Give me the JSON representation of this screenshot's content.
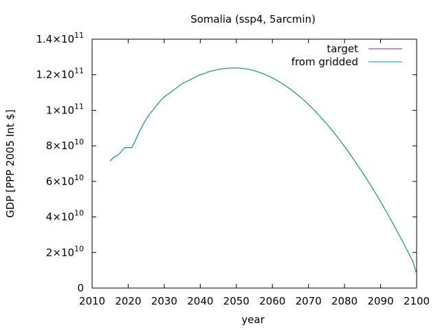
{
  "chart_data": {
    "type": "line",
    "title": "Somalia (ssp4, 5arcmin)",
    "xlabel": "year",
    "ylabel": "GDP [PPP 2005 Int $]",
    "xlim": [
      2010,
      2100
    ],
    "ylim": [
      0,
      140000000000
    ],
    "x_ticks": [
      "2010",
      "2020",
      "2030",
      "2040",
      "2050",
      "2060",
      "2070",
      "2080",
      "2090",
      "2100"
    ],
    "y_ticks": [
      {
        "value": 0,
        "mantissa": "0",
        "exponent": ""
      },
      {
        "value": 20000000000,
        "mantissa": "2×10",
        "exponent": "10"
      },
      {
        "value": 40000000000,
        "mantissa": "4×10",
        "exponent": "10"
      },
      {
        "value": 60000000000,
        "mantissa": "6×10",
        "exponent": "10"
      },
      {
        "value": 80000000000,
        "mantissa": "8×10",
        "exponent": "10"
      },
      {
        "value": 100000000000,
        "mantissa": "1×10",
        "exponent": "11"
      },
      {
        "value": 120000000000,
        "mantissa": "1.2×10",
        "exponent": "11"
      },
      {
        "value": 140000000000,
        "mantissa": "1.4×10",
        "exponent": "11"
      }
    ],
    "grid": false,
    "legend_position": "top-right",
    "series": [
      {
        "name": "target",
        "color": "#8b1a9e",
        "x": [
          2015,
          2016,
          2017,
          2018,
          2019,
          2020,
          2021,
          2022,
          2023,
          2024,
          2025,
          2026,
          2027,
          2028,
          2029,
          2030,
          2031,
          2032,
          2033,
          2034,
          2035,
          2036,
          2037,
          2038,
          2039,
          2040,
          2041,
          2042,
          2043,
          2044,
          2045,
          2046,
          2047,
          2048,
          2049,
          2050,
          2051,
          2052,
          2053,
          2054,
          2055,
          2056,
          2057,
          2058,
          2059,
          2060,
          2061,
          2062,
          2063,
          2064,
          2065,
          2066,
          2067,
          2068,
          2069,
          2070,
          2071,
          2072,
          2073,
          2074,
          2075,
          2076,
          2077,
          2078,
          2079,
          2080,
          2081,
          2082,
          2083,
          2084,
          2085,
          2086,
          2087,
          2088,
          2089,
          2090,
          2091,
          2092,
          2093,
          2094,
          2095,
          2096,
          2097,
          2098,
          2099,
          2100
        ],
        "y": [
          71500000000,
          73500000000,
          74500000000,
          76500000000,
          79000000000,
          79000000000,
          79000000000,
          83000000000,
          87500000000,
          91500000000,
          95000000000,
          98000000000,
          100500000000,
          103000000000,
          105500000000,
          107500000000,
          109000000000,
          110500000000,
          112000000000,
          113500000000,
          115000000000,
          116000000000,
          117000000000,
          118000000000,
          119000000000,
          120000000000,
          120500000000,
          121500000000,
          122000000000,
          122500000000,
          123000000000,
          123300000000,
          123500000000,
          123700000000,
          123800000000,
          123800000000,
          123700000000,
          123500000000,
          123200000000,
          122800000000,
          122300000000,
          121600000000,
          120900000000,
          120100000000,
          119200000000,
          118200000000,
          117100000000,
          115900000000,
          114700000000,
          113300000000,
          111900000000,
          110300000000,
          108700000000,
          107000000000,
          105200000000,
          103300000000,
          101300000000,
          99200000000,
          97000000000,
          94800000000,
          92500000000,
          90100000000,
          87600000000,
          85000000000,
          82400000000,
          79700000000,
          76900000000,
          74000000000,
          71000000000,
          68000000000,
          65000000000,
          61800000000,
          58600000000,
          55400000000,
          52000000000,
          48600000000,
          45100000000,
          41500000000,
          37900000000,
          34200000000,
          30400000000,
          26600000000,
          22700000000,
          18800000000,
          14800000000,
          8000000000
        ]
      },
      {
        "name": "from gridded",
        "color": "#009e73",
        "x": [
          2015,
          2016,
          2017,
          2018,
          2019,
          2020,
          2021,
          2022,
          2023,
          2024,
          2025,
          2026,
          2027,
          2028,
          2029,
          2030,
          2031,
          2032,
          2033,
          2034,
          2035,
          2036,
          2037,
          2038,
          2039,
          2040,
          2041,
          2042,
          2043,
          2044,
          2045,
          2046,
          2047,
          2048,
          2049,
          2050,
          2051,
          2052,
          2053,
          2054,
          2055,
          2056,
          2057,
          2058,
          2059,
          2060,
          2061,
          2062,
          2063,
          2064,
          2065,
          2066,
          2067,
          2068,
          2069,
          2070,
          2071,
          2072,
          2073,
          2074,
          2075,
          2076,
          2077,
          2078,
          2079,
          2080,
          2081,
          2082,
          2083,
          2084,
          2085,
          2086,
          2087,
          2088,
          2089,
          2090,
          2091,
          2092,
          2093,
          2094,
          2095,
          2096,
          2097,
          2098,
          2099,
          2100
        ],
        "y": [
          71500000000,
          73500000000,
          74500000000,
          76500000000,
          79000000000,
          79000000000,
          79000000000,
          83000000000,
          87500000000,
          91500000000,
          95000000000,
          98000000000,
          100500000000,
          103000000000,
          105500000000,
          107500000000,
          109000000000,
          110500000000,
          112000000000,
          113500000000,
          115000000000,
          116000000000,
          117000000000,
          118000000000,
          119000000000,
          120000000000,
          120500000000,
          121500000000,
          122000000000,
          122500000000,
          123000000000,
          123300000000,
          123500000000,
          123700000000,
          123800000000,
          123800000000,
          123700000000,
          123500000000,
          123200000000,
          122800000000,
          122300000000,
          121600000000,
          120900000000,
          120100000000,
          119200000000,
          118200000000,
          117100000000,
          115900000000,
          114700000000,
          113300000000,
          111900000000,
          110300000000,
          108700000000,
          107000000000,
          105200000000,
          103300000000,
          101300000000,
          99200000000,
          97000000000,
          94800000000,
          92500000000,
          90100000000,
          87600000000,
          85000000000,
          82400000000,
          79700000000,
          76900000000,
          74000000000,
          71000000000,
          68000000000,
          65000000000,
          61800000000,
          58600000000,
          55400000000,
          52000000000,
          48600000000,
          45100000000,
          41500000000,
          37900000000,
          34200000000,
          30400000000,
          26600000000,
          22700000000,
          18800000000,
          14800000000,
          8000000000
        ]
      }
    ]
  }
}
